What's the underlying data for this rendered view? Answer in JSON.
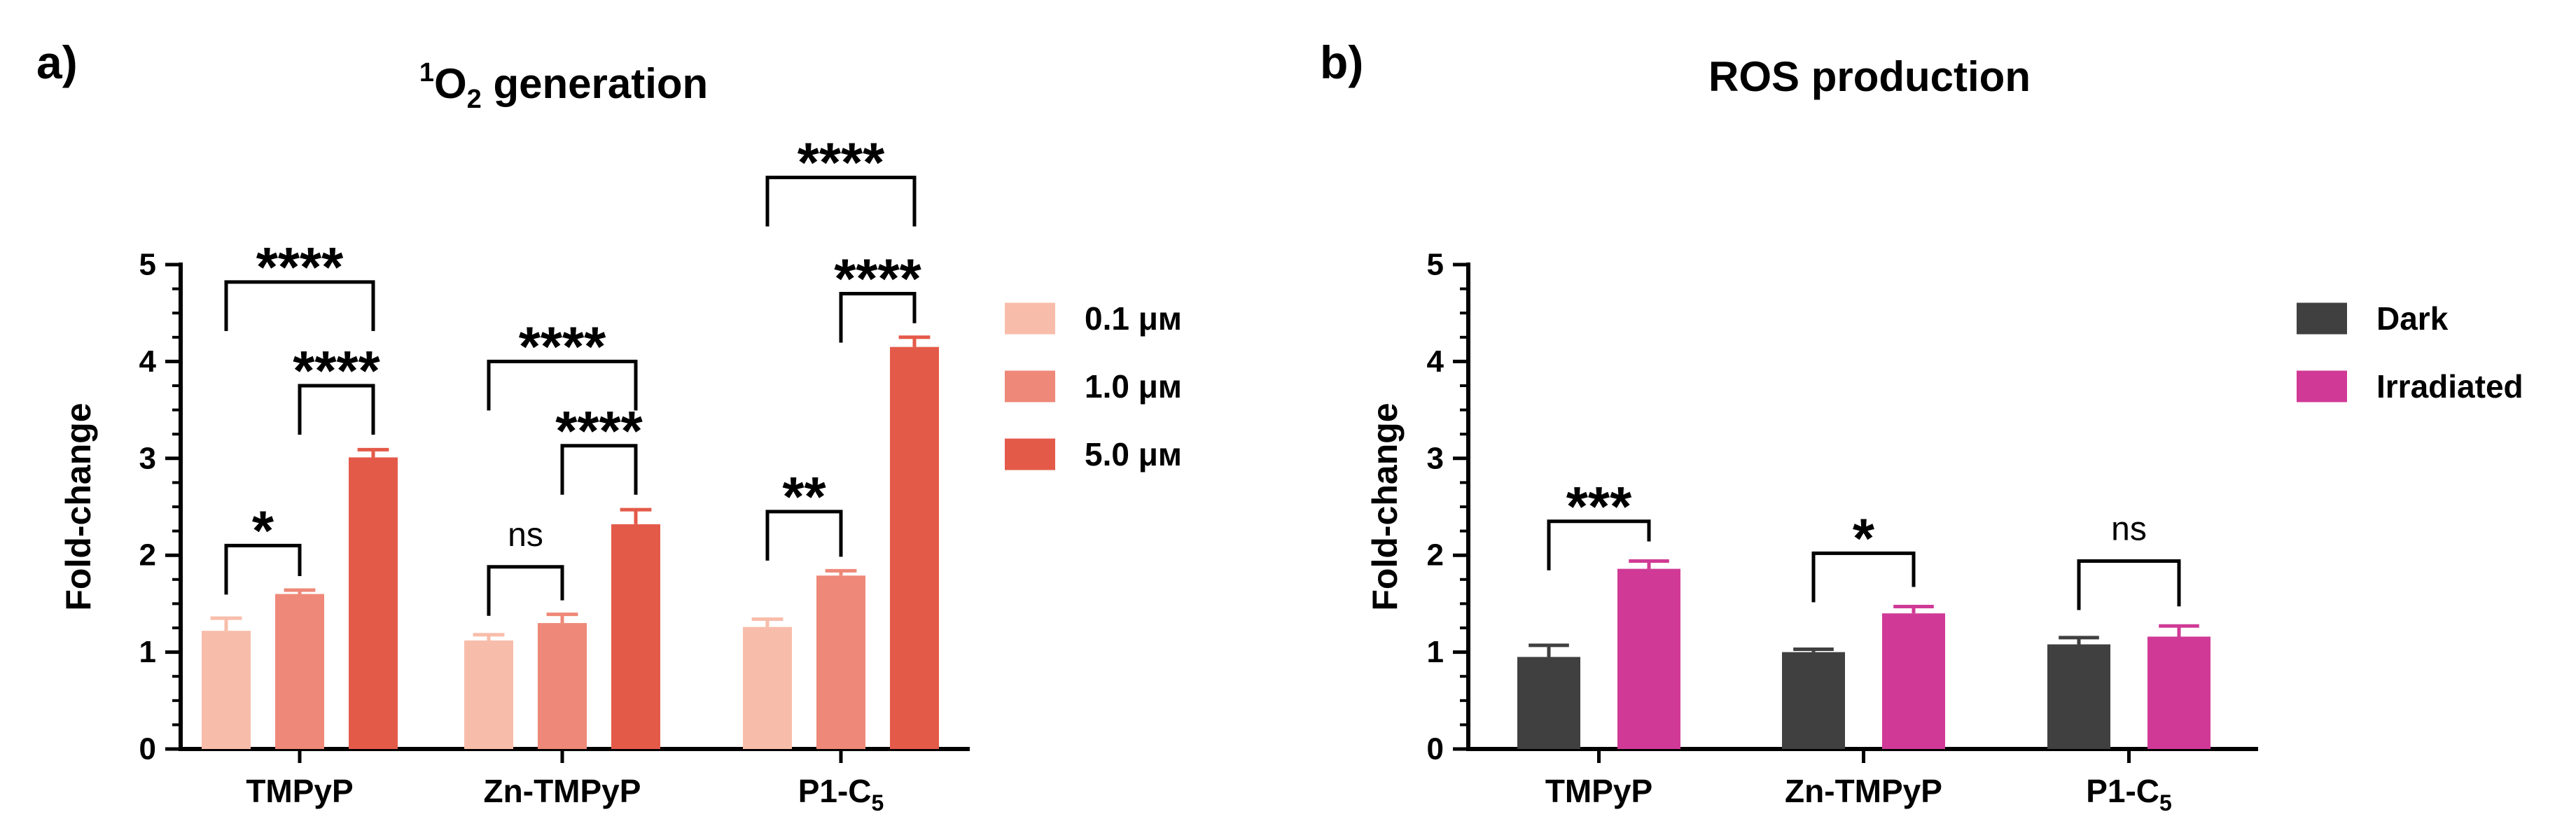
{
  "chart_data": [
    {
      "type": "bar",
      "panel_label": "a)",
      "title": "1O2 generation",
      "title_parts": {
        "sup": "1",
        "base": "O",
        "sub": "2",
        "rest": " generation"
      },
      "ylabel": "Fold-change",
      "xlabel": "",
      "ylim": [
        0,
        5
      ],
      "yticks": [
        "0",
        "1",
        "2",
        "3",
        "4",
        "5"
      ],
      "categories": [
        {
          "label": "TMPyP",
          "sub": ""
        },
        {
          "label": "Zn-TMPyP",
          "sub": ""
        },
        {
          "label": "P1-C",
          "sub": "5"
        }
      ],
      "series": [
        {
          "name": "0.1 μм",
          "color": "#f8bdaa",
          "values": [
            1.22,
            1.12,
            1.26
          ],
          "errors": [
            0.13,
            0.06,
            0.08
          ]
        },
        {
          "name": "1.0 μм",
          "color": "#ee8878",
          "values": [
            1.6,
            1.3,
            1.79
          ],
          "errors": [
            0.04,
            0.09,
            0.05
          ]
        },
        {
          "name": "5.0 μм",
          "color": "#e45a49",
          "values": [
            3.01,
            2.32,
            4.15
          ],
          "errors": [
            0.08,
            0.15,
            0.1
          ]
        }
      ],
      "legend_position": "right",
      "brackets": [
        {
          "group": 0,
          "from": 0,
          "to": 1,
          "label": "*",
          "y": 2.1
        },
        {
          "group": 0,
          "from": 1,
          "to": 2,
          "label": "****",
          "y": 3.75
        },
        {
          "group": 0,
          "from": 0,
          "to": 2,
          "label": "****",
          "y": 4.82
        },
        {
          "group": 1,
          "from": 0,
          "to": 1,
          "label": "ns",
          "y": 1.88
        },
        {
          "group": 1,
          "from": 1,
          "to": 2,
          "label": "****",
          "y": 3.13
        },
        {
          "group": 1,
          "from": 0,
          "to": 2,
          "label": "****",
          "y": 4.0
        },
        {
          "group": 2,
          "from": 0,
          "to": 1,
          "label": "**",
          "y": 2.45
        },
        {
          "group": 2,
          "from": 1,
          "to": 2,
          "label": "****",
          "y": 4.7
        },
        {
          "group": 2,
          "from": 0,
          "to": 2,
          "label": "****",
          "y": 5.9
        }
      ]
    },
    {
      "type": "bar",
      "panel_label": "b)",
      "title": "ROS production",
      "ylabel": "Fold-change",
      "xlabel": "",
      "ylim": [
        0,
        5
      ],
      "yticks": [
        "0",
        "1",
        "2",
        "3",
        "4",
        "5"
      ],
      "categories": [
        {
          "label": "TMPyP",
          "sub": ""
        },
        {
          "label": "Zn-TMPyP",
          "sub": ""
        },
        {
          "label": "P1-C",
          "sub": "5"
        }
      ],
      "series": [
        {
          "name": "Dark",
          "color": "#404040",
          "values": [
            0.95,
            1.0,
            1.08
          ],
          "errors": [
            0.12,
            0.03,
            0.07
          ]
        },
        {
          "name": "Irradiated",
          "color": "#d03a96",
          "values": [
            1.86,
            1.4,
            1.16
          ],
          "errors": [
            0.08,
            0.07,
            0.11
          ]
        }
      ],
      "legend_position": "right",
      "brackets": [
        {
          "group": 0,
          "from": 0,
          "to": 1,
          "label": "***",
          "y": 2.35
        },
        {
          "group": 1,
          "from": 0,
          "to": 1,
          "label": "*",
          "y": 2.02
        },
        {
          "group": 2,
          "from": 0,
          "to": 1,
          "label": "ns",
          "y": 1.94
        }
      ]
    }
  ]
}
